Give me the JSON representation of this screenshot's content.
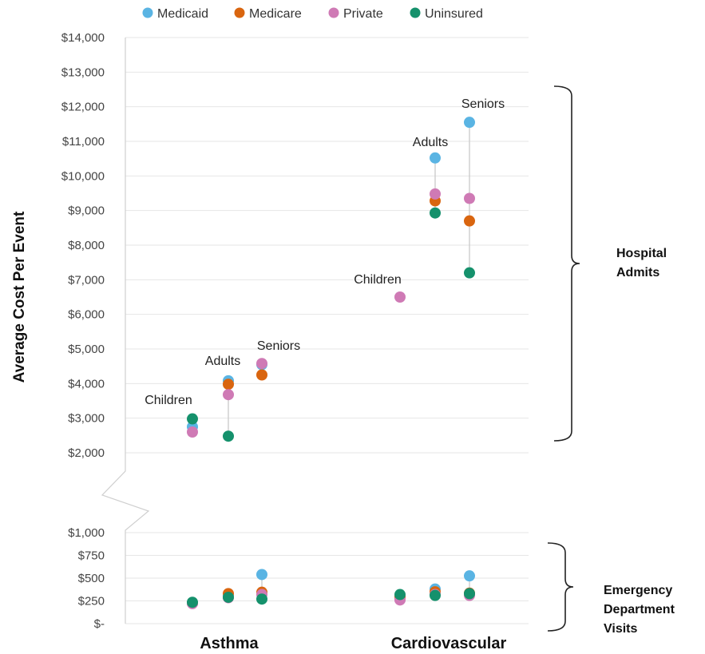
{
  "chart_data": {
    "type": "scatter",
    "ylabel": "Average Cost Per Event",
    "categories": [
      "Asthma",
      "Cardiovascular"
    ],
    "groups": [
      "Children",
      "Adults",
      "Seniors"
    ],
    "legend": {
      "placement": "top",
      "entries": [
        "Medicaid",
        "Medicare",
        "Private",
        "Uninsured"
      ]
    },
    "colors": {
      "Medicaid": "#5ab4e3",
      "Medicare": "#d9650f",
      "Private": "#cf7ab5",
      "Uninsured": "#15916c"
    },
    "grid": true,
    "sections": {
      "hospital_admits": {
        "label": [
          "Hospital",
          "Admits"
        ],
        "ylim": [
          2000,
          14000
        ],
        "ticks": [
          "$2,000",
          "$3,000",
          "$4,000",
          "$5,000",
          "$6,000",
          "$7,000",
          "$8,000",
          "$9,000",
          "$10,000",
          "$11,000",
          "$12,000",
          "$13,000",
          "$14,000"
        ],
        "data": {
          "Asthma": {
            "Children": {
              "Medicaid": 2750,
              "Private": 2600,
              "Uninsured": 2980
            },
            "Adults": {
              "Medicaid": 4080,
              "Medicare": 3980,
              "Private": 3680,
              "Uninsured": 2480
            },
            "Seniors": {
              "Medicaid": 4550,
              "Medicare": 4250,
              "Private": 4580
            }
          },
          "Cardiovascular": {
            "Children": {
              "Private": 6500
            },
            "Adults": {
              "Medicaid": 10520,
              "Medicare": 9280,
              "Private": 9480,
              "Uninsured": 8930
            },
            "Seniors": {
              "Medicaid": 11550,
              "Medicare": 8700,
              "Private": 9350,
              "Uninsured": 7200
            }
          }
        }
      },
      "emergency_department_visits": {
        "label": [
          "Emergency",
          "Department",
          "Visits"
        ],
        "ylim": [
          0,
          1000
        ],
        "ticks": [
          "$-",
          "$250",
          "$500",
          "$750",
          "$1,000"
        ],
        "data": {
          "Asthma": {
            "Children": {
              "Medicaid": 230,
              "Medicare": 225,
              "Private": 220,
              "Uninsured": 235
            },
            "Adults": {
              "Medicaid": 300,
              "Medicare": 330,
              "Private": 285,
              "Uninsured": 290
            },
            "Seniors": {
              "Medicaid": 540,
              "Medicare": 345,
              "Private": 320,
              "Uninsured": 270
            }
          },
          "Cardiovascular": {
            "Children": {
              "Medicaid": 300,
              "Medicare": 290,
              "Private": 260,
              "Uninsured": 320
            },
            "Adults": {
              "Medicaid": 380,
              "Medicare": 350,
              "Private": 320,
              "Uninsured": 310
            },
            "Seniors": {
              "Medicaid": 525,
              "Medicare": 335,
              "Private": 310,
              "Uninsured": 330
            }
          }
        }
      }
    }
  }
}
